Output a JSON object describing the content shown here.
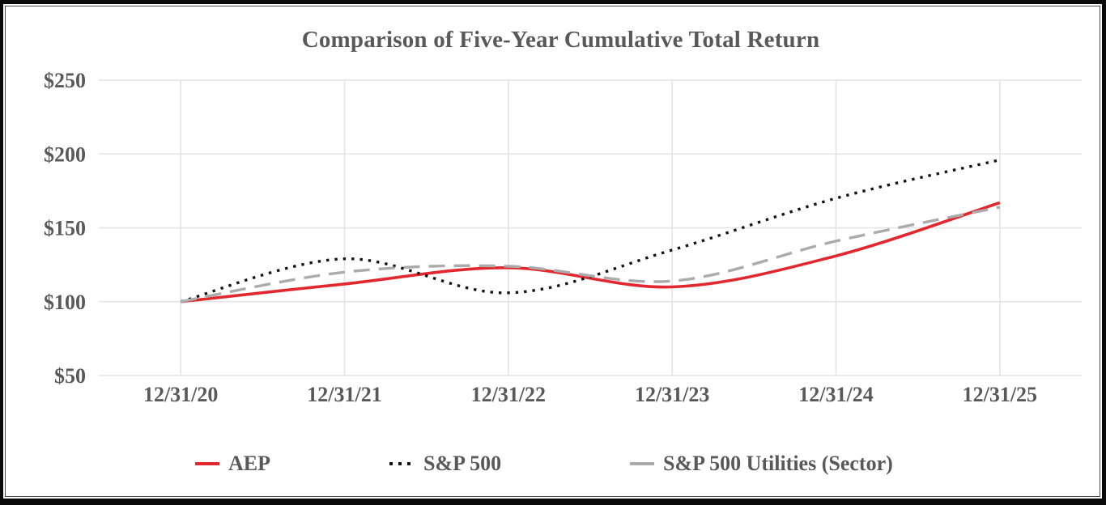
{
  "chart_data": {
    "type": "line",
    "title": "Comparison of Five-Year Cumulative Total Return",
    "categories": [
      "12/31/20",
      "12/31/21",
      "12/31/22",
      "12/31/23",
      "12/31/24",
      "12/31/25"
    ],
    "series": [
      {
        "name": "AEP",
        "values": [
          100,
          112,
          123,
          110,
          131,
          167
        ],
        "color": "#e2282e",
        "style": "solid"
      },
      {
        "name": "S&P 500",
        "values": [
          100,
          129,
          106,
          135,
          170,
          196
        ],
        "color": "#141414",
        "style": "dotted"
      },
      {
        "name": "S&P 500 Utilities (Sector)",
        "values": [
          100,
          120,
          124,
          114,
          141,
          164
        ],
        "color": "#ababab",
        "style": "dashed"
      }
    ],
    "y_ticks": [
      {
        "value": 50,
        "label": "$50"
      },
      {
        "value": 100,
        "label": "$100"
      },
      {
        "value": 150,
        "label": "$150"
      },
      {
        "value": 200,
        "label": "$200"
      },
      {
        "value": 250,
        "label": "$250"
      }
    ],
    "ylim": [
      50,
      250
    ],
    "grid": true,
    "smooth": true,
    "legend_position": "bottom"
  },
  "colors": {
    "text": "#595959",
    "gridline": "#e4e4e4",
    "background": "#ffffff",
    "frame": "#0a0a0a"
  }
}
